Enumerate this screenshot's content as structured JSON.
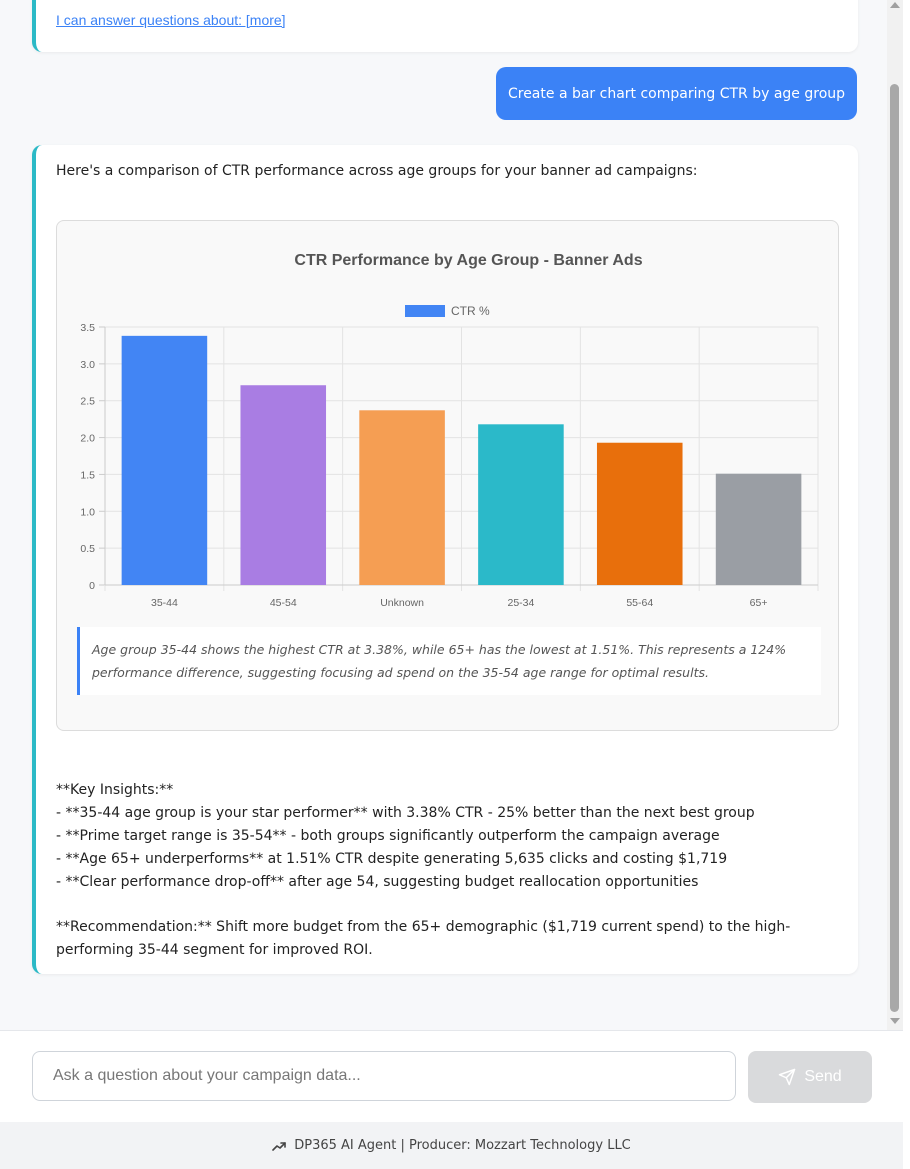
{
  "top_card": {
    "link_text": "I can answer questions about: [more]"
  },
  "user_message": "Create a bar chart comparing CTR by age group",
  "bot_message": {
    "intro": "Here's a comparison of CTR performance across age groups for your banner ad campaigns:",
    "insight": "Age group 35-44 shows the highest CTR at 3.38%, while 65+ has the lowest at 1.51%. This represents a 124% performance difference, suggesting focusing ad spend on the 35-54 age range for optimal results.",
    "lines": [
      "**Key Insights:**",
      "- **35-44 age group is your star performer** with 3.38% CTR - 25% better than the next best group",
      "- **Prime target range is 35-54** - both groups significantly outperform the campaign average",
      "- **Age 65+ underperforms** at 1.51% CTR despite generating 5,635 clicks and costing $1,719",
      "- **Clear performance drop-off** after age 54, suggesting budget reallocation opportunities"
    ],
    "recommendation": "**Recommendation:** Shift more budget from the 65+ demographic ($1,719 current spend) to the high-performing 35-44 segment for improved ROI."
  },
  "chart_data": {
    "type": "bar",
    "title": "CTR Performance by Age Group - Banner Ads",
    "categories": [
      "35-44",
      "45-54",
      "Unknown",
      "25-34",
      "55-64",
      "65+"
    ],
    "series": [
      {
        "name": "CTR %",
        "values": [
          3.38,
          2.71,
          2.37,
          2.18,
          1.93,
          1.51
        ]
      }
    ],
    "bar_colors": [
      "#4285f4",
      "#a97de3",
      "#f59e53",
      "#2bb9c9",
      "#e86f0c",
      "#9a9ea4"
    ],
    "legend_color": "#4285f4",
    "ylim": [
      0,
      3.5
    ],
    "yticks": [
      "0",
      "0.5",
      "1.0",
      "1.5",
      "2.0",
      "2.5",
      "3.0",
      "3.5"
    ],
    "ytick_values": [
      0,
      0.5,
      1.0,
      1.5,
      2.0,
      2.5,
      3.0,
      3.5
    ],
    "legend_position": "top",
    "grid": true
  },
  "input": {
    "placeholder": "Ask a question about your campaign data..."
  },
  "send_label": "Send",
  "footer": {
    "text": "DP365 AI Agent | Producer: Mozzart Technology LLC",
    "icon": "trending-up-icon"
  }
}
